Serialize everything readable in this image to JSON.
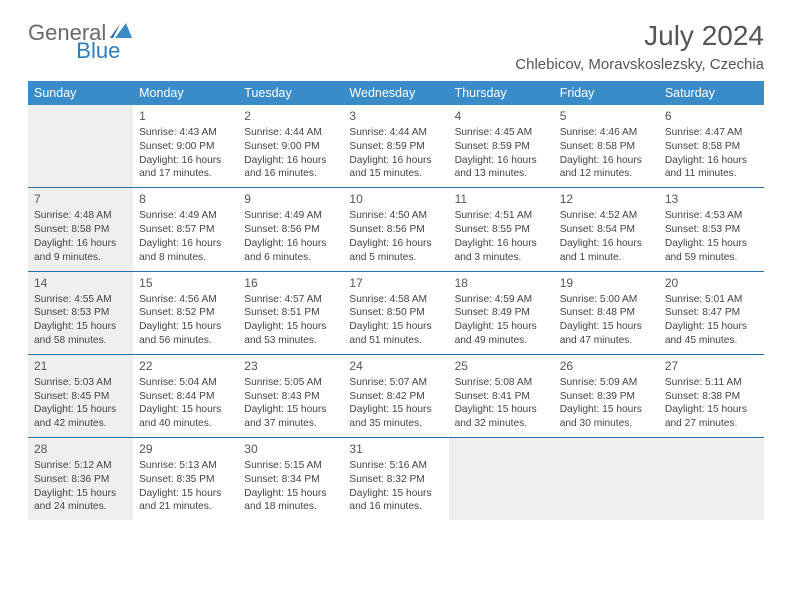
{
  "logo": {
    "general": "General",
    "blue": "Blue"
  },
  "header": {
    "month_title": "July 2024",
    "location": "Chlebicov, Moravskoslezsky, Czechia"
  },
  "weekdays": [
    "Sunday",
    "Monday",
    "Tuesday",
    "Wednesday",
    "Thursday",
    "Friday",
    "Saturday"
  ],
  "colors": {
    "header_bg": "#3a8cc9",
    "header_text": "#ffffff",
    "row_border": "#2d6fa8",
    "shaded_bg": "#eef0f0",
    "body_text": "#444444",
    "logo_gray": "#6a6a6a",
    "logo_blue": "#2d7cc1",
    "title_color": "#555555"
  },
  "weeks": [
    [
      {
        "day": "",
        "sunrise": "",
        "sunset": "",
        "daylight": "",
        "shaded": true,
        "empty": true
      },
      {
        "day": "1",
        "sunrise": "Sunrise: 4:43 AM",
        "sunset": "Sunset: 9:00 PM",
        "daylight": "Daylight: 16 hours and 17 minutes.",
        "shaded": false
      },
      {
        "day": "2",
        "sunrise": "Sunrise: 4:44 AM",
        "sunset": "Sunset: 9:00 PM",
        "daylight": "Daylight: 16 hours and 16 minutes.",
        "shaded": false
      },
      {
        "day": "3",
        "sunrise": "Sunrise: 4:44 AM",
        "sunset": "Sunset: 8:59 PM",
        "daylight": "Daylight: 16 hours and 15 minutes.",
        "shaded": false
      },
      {
        "day": "4",
        "sunrise": "Sunrise: 4:45 AM",
        "sunset": "Sunset: 8:59 PM",
        "daylight": "Daylight: 16 hours and 13 minutes.",
        "shaded": false
      },
      {
        "day": "5",
        "sunrise": "Sunrise: 4:46 AM",
        "sunset": "Sunset: 8:58 PM",
        "daylight": "Daylight: 16 hours and 12 minutes.",
        "shaded": false
      },
      {
        "day": "6",
        "sunrise": "Sunrise: 4:47 AM",
        "sunset": "Sunset: 8:58 PM",
        "daylight": "Daylight: 16 hours and 11 minutes.",
        "shaded": false
      }
    ],
    [
      {
        "day": "7",
        "sunrise": "Sunrise: 4:48 AM",
        "sunset": "Sunset: 8:58 PM",
        "daylight": "Daylight: 16 hours and 9 minutes.",
        "shaded": true
      },
      {
        "day": "8",
        "sunrise": "Sunrise: 4:49 AM",
        "sunset": "Sunset: 8:57 PM",
        "daylight": "Daylight: 16 hours and 8 minutes.",
        "shaded": false
      },
      {
        "day": "9",
        "sunrise": "Sunrise: 4:49 AM",
        "sunset": "Sunset: 8:56 PM",
        "daylight": "Daylight: 16 hours and 6 minutes.",
        "shaded": false
      },
      {
        "day": "10",
        "sunrise": "Sunrise: 4:50 AM",
        "sunset": "Sunset: 8:56 PM",
        "daylight": "Daylight: 16 hours and 5 minutes.",
        "shaded": false
      },
      {
        "day": "11",
        "sunrise": "Sunrise: 4:51 AM",
        "sunset": "Sunset: 8:55 PM",
        "daylight": "Daylight: 16 hours and 3 minutes.",
        "shaded": false
      },
      {
        "day": "12",
        "sunrise": "Sunrise: 4:52 AM",
        "sunset": "Sunset: 8:54 PM",
        "daylight": "Daylight: 16 hours and 1 minute.",
        "shaded": false
      },
      {
        "day": "13",
        "sunrise": "Sunrise: 4:53 AM",
        "sunset": "Sunset: 8:53 PM",
        "daylight": "Daylight: 15 hours and 59 minutes.",
        "shaded": false
      }
    ],
    [
      {
        "day": "14",
        "sunrise": "Sunrise: 4:55 AM",
        "sunset": "Sunset: 8:53 PM",
        "daylight": "Daylight: 15 hours and 58 minutes.",
        "shaded": true
      },
      {
        "day": "15",
        "sunrise": "Sunrise: 4:56 AM",
        "sunset": "Sunset: 8:52 PM",
        "daylight": "Daylight: 15 hours and 56 minutes.",
        "shaded": false
      },
      {
        "day": "16",
        "sunrise": "Sunrise: 4:57 AM",
        "sunset": "Sunset: 8:51 PM",
        "daylight": "Daylight: 15 hours and 53 minutes.",
        "shaded": false
      },
      {
        "day": "17",
        "sunrise": "Sunrise: 4:58 AM",
        "sunset": "Sunset: 8:50 PM",
        "daylight": "Daylight: 15 hours and 51 minutes.",
        "shaded": false
      },
      {
        "day": "18",
        "sunrise": "Sunrise: 4:59 AM",
        "sunset": "Sunset: 8:49 PM",
        "daylight": "Daylight: 15 hours and 49 minutes.",
        "shaded": false
      },
      {
        "day": "19",
        "sunrise": "Sunrise: 5:00 AM",
        "sunset": "Sunset: 8:48 PM",
        "daylight": "Daylight: 15 hours and 47 minutes.",
        "shaded": false
      },
      {
        "day": "20",
        "sunrise": "Sunrise: 5:01 AM",
        "sunset": "Sunset: 8:47 PM",
        "daylight": "Daylight: 15 hours and 45 minutes.",
        "shaded": false
      }
    ],
    [
      {
        "day": "21",
        "sunrise": "Sunrise: 5:03 AM",
        "sunset": "Sunset: 8:45 PM",
        "daylight": "Daylight: 15 hours and 42 minutes.",
        "shaded": true
      },
      {
        "day": "22",
        "sunrise": "Sunrise: 5:04 AM",
        "sunset": "Sunset: 8:44 PM",
        "daylight": "Daylight: 15 hours and 40 minutes.",
        "shaded": false
      },
      {
        "day": "23",
        "sunrise": "Sunrise: 5:05 AM",
        "sunset": "Sunset: 8:43 PM",
        "daylight": "Daylight: 15 hours and 37 minutes.",
        "shaded": false
      },
      {
        "day": "24",
        "sunrise": "Sunrise: 5:07 AM",
        "sunset": "Sunset: 8:42 PM",
        "daylight": "Daylight: 15 hours and 35 minutes.",
        "shaded": false
      },
      {
        "day": "25",
        "sunrise": "Sunrise: 5:08 AM",
        "sunset": "Sunset: 8:41 PM",
        "daylight": "Daylight: 15 hours and 32 minutes.",
        "shaded": false
      },
      {
        "day": "26",
        "sunrise": "Sunrise: 5:09 AM",
        "sunset": "Sunset: 8:39 PM",
        "daylight": "Daylight: 15 hours and 30 minutes.",
        "shaded": false
      },
      {
        "day": "27",
        "sunrise": "Sunrise: 5:11 AM",
        "sunset": "Sunset: 8:38 PM",
        "daylight": "Daylight: 15 hours and 27 minutes.",
        "shaded": false
      }
    ],
    [
      {
        "day": "28",
        "sunrise": "Sunrise: 5:12 AM",
        "sunset": "Sunset: 8:36 PM",
        "daylight": "Daylight: 15 hours and 24 minutes.",
        "shaded": true
      },
      {
        "day": "29",
        "sunrise": "Sunrise: 5:13 AM",
        "sunset": "Sunset: 8:35 PM",
        "daylight": "Daylight: 15 hours and 21 minutes.",
        "shaded": false
      },
      {
        "day": "30",
        "sunrise": "Sunrise: 5:15 AM",
        "sunset": "Sunset: 8:34 PM",
        "daylight": "Daylight: 15 hours and 18 minutes.",
        "shaded": false
      },
      {
        "day": "31",
        "sunrise": "Sunrise: 5:16 AM",
        "sunset": "Sunset: 8:32 PM",
        "daylight": "Daylight: 15 hours and 16 minutes.",
        "shaded": false
      },
      {
        "day": "",
        "sunrise": "",
        "sunset": "",
        "daylight": "",
        "shaded": false,
        "empty": true
      },
      {
        "day": "",
        "sunrise": "",
        "sunset": "",
        "daylight": "",
        "shaded": false,
        "empty": true
      },
      {
        "day": "",
        "sunrise": "",
        "sunset": "",
        "daylight": "",
        "shaded": false,
        "empty": true
      }
    ]
  ]
}
